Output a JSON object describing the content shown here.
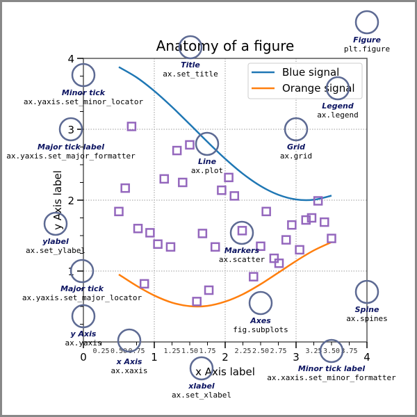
{
  "chart_data": {
    "type": "line",
    "title": "Anatomy of a figure",
    "xlabel": "x Axis label",
    "ylabel": "y Axis label",
    "xlim": [
      0,
      4
    ],
    "ylim": [
      0,
      4
    ],
    "grid": true,
    "legend_placement": "top-right",
    "x_major_ticks": [
      "0",
      "1",
      "2",
      "3",
      "4"
    ],
    "x_minor_ticks": [
      "0.25",
      "0.50",
      "0.75",
      "1.25",
      "1.50",
      "1.75",
      "2.25",
      "2.50",
      "2.75",
      "3.25",
      "3.50",
      "3.75"
    ],
    "y_major_ticks": [
      "1",
      "2",
      "3",
      "4"
    ],
    "series": [
      {
        "name": "Blue signal",
        "color": "#1f77b4",
        "kind": "line",
        "x": [
          0.5,
          0.75,
          1.0,
          1.25,
          1.5,
          1.75,
          2.0,
          2.25,
          2.5,
          2.75,
          3.0,
          3.25,
          3.5
        ],
        "y": [
          3.878,
          3.732,
          3.54,
          3.315,
          3.071,
          2.822,
          2.584,
          2.372,
          2.199,
          2.076,
          2.01,
          2.006,
          2.064
        ]
      },
      {
        "name": "Orange signal",
        "color": "#ff7f0e",
        "kind": "line",
        "x": [
          0.5,
          0.75,
          1.0,
          1.25,
          1.5,
          1.75,
          2.0,
          2.25,
          2.5,
          2.75,
          3.0,
          3.25,
          3.5
        ],
        "y": [
          0.952,
          0.792,
          0.655,
          0.555,
          0.505,
          0.509,
          0.569,
          0.673,
          0.815,
          0.977,
          1.142,
          1.291,
          1.408
        ]
      },
      {
        "name": "Markers",
        "color": "#9467bd",
        "kind": "scatter",
        "x": [
          0.68,
          0.59,
          0.5,
          0.77,
          0.94,
          1.05,
          1.23,
          0.86,
          1.32,
          1.5,
          1.14,
          1.4,
          1.68,
          1.86,
          1.77,
          1.6,
          1.95,
          2.05,
          2.13,
          2.24,
          2.5,
          2.4,
          2.69,
          2.76,
          2.58,
          2.86,
          3.05,
          2.94,
          3.14,
          3.22,
          3.4,
          3.31,
          3.5
        ],
        "y": [
          3.04,
          2.17,
          1.84,
          1.6,
          1.54,
          1.38,
          1.34,
          0.82,
          2.7,
          2.78,
          2.3,
          2.25,
          1.53,
          1.34,
          0.73,
          0.57,
          2.14,
          2.32,
          2.06,
          1.57,
          1.35,
          0.92,
          1.18,
          1.11,
          1.84,
          1.44,
          1.3,
          1.65,
          1.72,
          1.75,
          1.69,
          1.99,
          1.46
        ]
      }
    ]
  },
  "annotations": [
    {
      "name": "Minor tick",
      "code": "ax.yaxis.set_minor_locator"
    },
    {
      "name": "Major tick label",
      "code": "ax.yaxis.set_major_formatter"
    },
    {
      "name": "Title",
      "code": "ax.set_title"
    },
    {
      "name": "Line",
      "code": "ax.plot"
    },
    {
      "name": "Figure",
      "code": "plt.figure"
    },
    {
      "name": "Legend",
      "code": "ax.legend"
    },
    {
      "name": "Grid",
      "code": "ax.grid"
    },
    {
      "name": "ylabel",
      "code": "ax.set_ylabel"
    },
    {
      "name": "Markers",
      "code": "ax.scatter"
    },
    {
      "name": "Major tick",
      "code": "ax.yaxis.set_major_locator"
    },
    {
      "name": "Spine",
      "code": "ax.spines"
    },
    {
      "name": "y Axis",
      "code": "ax.yaxis"
    },
    {
      "name": "Axes",
      "code": "fig.subplots"
    },
    {
      "name": "x Axis",
      "code": "ax.xaxis"
    },
    {
      "name": "xlabel",
      "code": "ax.set_xlabel"
    },
    {
      "name": "Minor tick label",
      "code": "ax.xaxis.set_minor_formatter"
    }
  ]
}
